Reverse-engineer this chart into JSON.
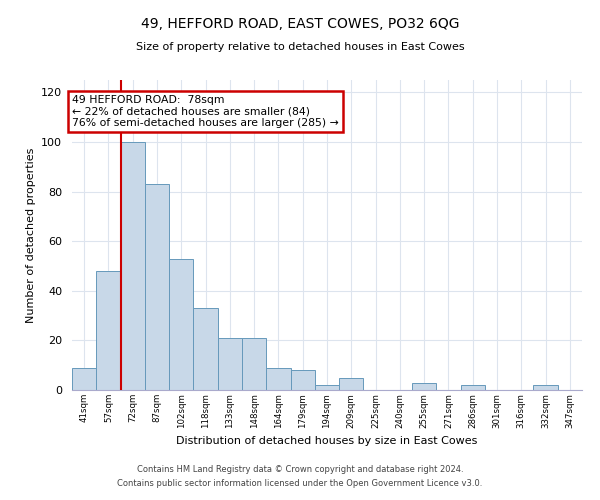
{
  "title": "49, HEFFORD ROAD, EAST COWES, PO32 6QG",
  "subtitle": "Size of property relative to detached houses in East Cowes",
  "xlabel": "Distribution of detached houses by size in East Cowes",
  "ylabel": "Number of detached properties",
  "bar_labels": [
    "41sqm",
    "57sqm",
    "72sqm",
    "87sqm",
    "102sqm",
    "118sqm",
    "133sqm",
    "148sqm",
    "164sqm",
    "179sqm",
    "194sqm",
    "209sqm",
    "225sqm",
    "240sqm",
    "255sqm",
    "271sqm",
    "286sqm",
    "301sqm",
    "316sqm",
    "332sqm",
    "347sqm"
  ],
  "bar_values": [
    9,
    48,
    100,
    83,
    53,
    33,
    21,
    21,
    9,
    8,
    2,
    5,
    0,
    0,
    3,
    0,
    2,
    0,
    0,
    2,
    0
  ],
  "bar_color": "#c8d8e8",
  "bar_edge_color": "#6699bb",
  "ylim": [
    0,
    125
  ],
  "yticks": [
    0,
    20,
    40,
    60,
    80,
    100,
    120
  ],
  "property_line_x": 2,
  "property_line_color": "#cc0000",
  "annotation_text": "49 HEFFORD ROAD:  78sqm\n← 22% of detached houses are smaller (84)\n76% of semi-detached houses are larger (285) →",
  "annotation_box_color": "#ffffff",
  "annotation_box_edge": "#cc0000",
  "footer_line1": "Contains HM Land Registry data © Crown copyright and database right 2024.",
  "footer_line2": "Contains public sector information licensed under the Open Government Licence v3.0.",
  "bg_color": "#ffffff",
  "grid_color": "#dde4ee"
}
